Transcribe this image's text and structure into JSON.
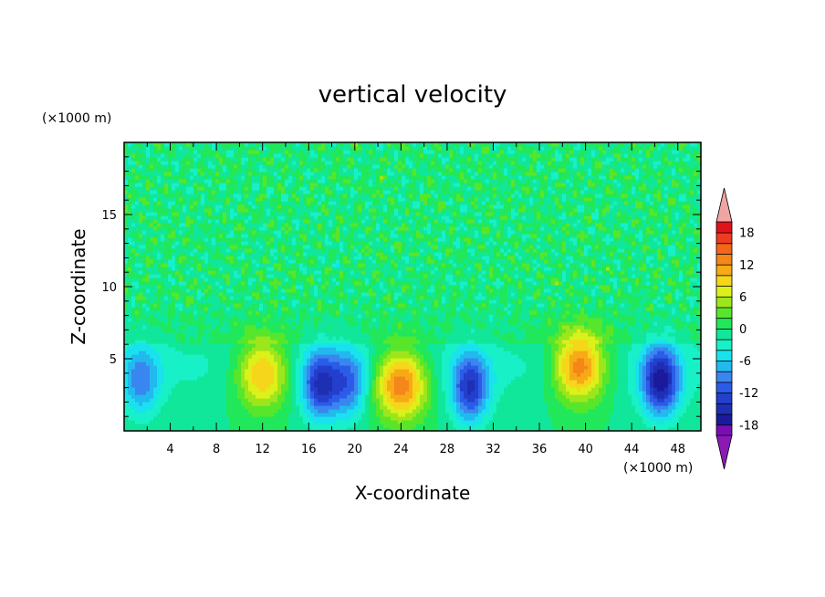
{
  "chart_data": {
    "type": "heatmap",
    "title": "vertical velocity",
    "xlabel": "X-coordinate",
    "ylabel": "Z-coordinate",
    "x_scale_note": "(×1000 m)",
    "y_scale_note": "(×1000 m)",
    "xlim": [
      0,
      50
    ],
    "ylim": [
      0,
      20
    ],
    "x_ticks": [
      4,
      8,
      12,
      16,
      20,
      24,
      28,
      32,
      36,
      40,
      44,
      48
    ],
    "y_ticks": [
      5,
      10,
      15
    ],
    "colorbar": {
      "levels": [
        -20,
        -18,
        -16,
        -14,
        -12,
        -10,
        -8,
        -6,
        -4,
        -2,
        0,
        2,
        4,
        6,
        8,
        10,
        12,
        14,
        16,
        18,
        20
      ],
      "tick_labels": [
        "18",
        "12",
        "6",
        "0",
        "-6",
        "-12",
        "-18"
      ],
      "tick_values": [
        18,
        12,
        6,
        0,
        -6,
        -12,
        -18
      ],
      "colors": [
        "#7a0eb4",
        "#1c1a9c",
        "#1e2fb4",
        "#233fcc",
        "#2a5ce8",
        "#3a86f0",
        "#22b9ee",
        "#19e2ee",
        "#18f0c8",
        "#10e79a",
        "#21e85a",
        "#58e62a",
        "#9ee61c",
        "#dcf01a",
        "#f5d61a",
        "#f7aa16",
        "#f5861a",
        "#f56619",
        "#ee3c22",
        "#e0121a"
      ],
      "extend_low_color": "#8b1ab4",
      "extend_high_color": "#f0a5a5"
    },
    "features": [
      {
        "sign": "up",
        "x": 12,
        "z": 4,
        "peak": 12
      },
      {
        "sign": "down",
        "x": 17,
        "z": 3.2,
        "peak": -13
      },
      {
        "sign": "down",
        "x": 19.5,
        "z": 3.3,
        "peak": -9
      },
      {
        "sign": "up",
        "x": 24,
        "z": 3.3,
        "peak": 15
      },
      {
        "sign": "down",
        "x": 30,
        "z": 3,
        "peak": -13
      },
      {
        "sign": "up",
        "x": 39.5,
        "z": 4.5,
        "peak": 15
      },
      {
        "sign": "down",
        "x": 46.5,
        "z": 3.5,
        "peak": -16
      },
      {
        "sign": "down",
        "x": 1.5,
        "z": 3.5,
        "peak": -8
      }
    ]
  }
}
